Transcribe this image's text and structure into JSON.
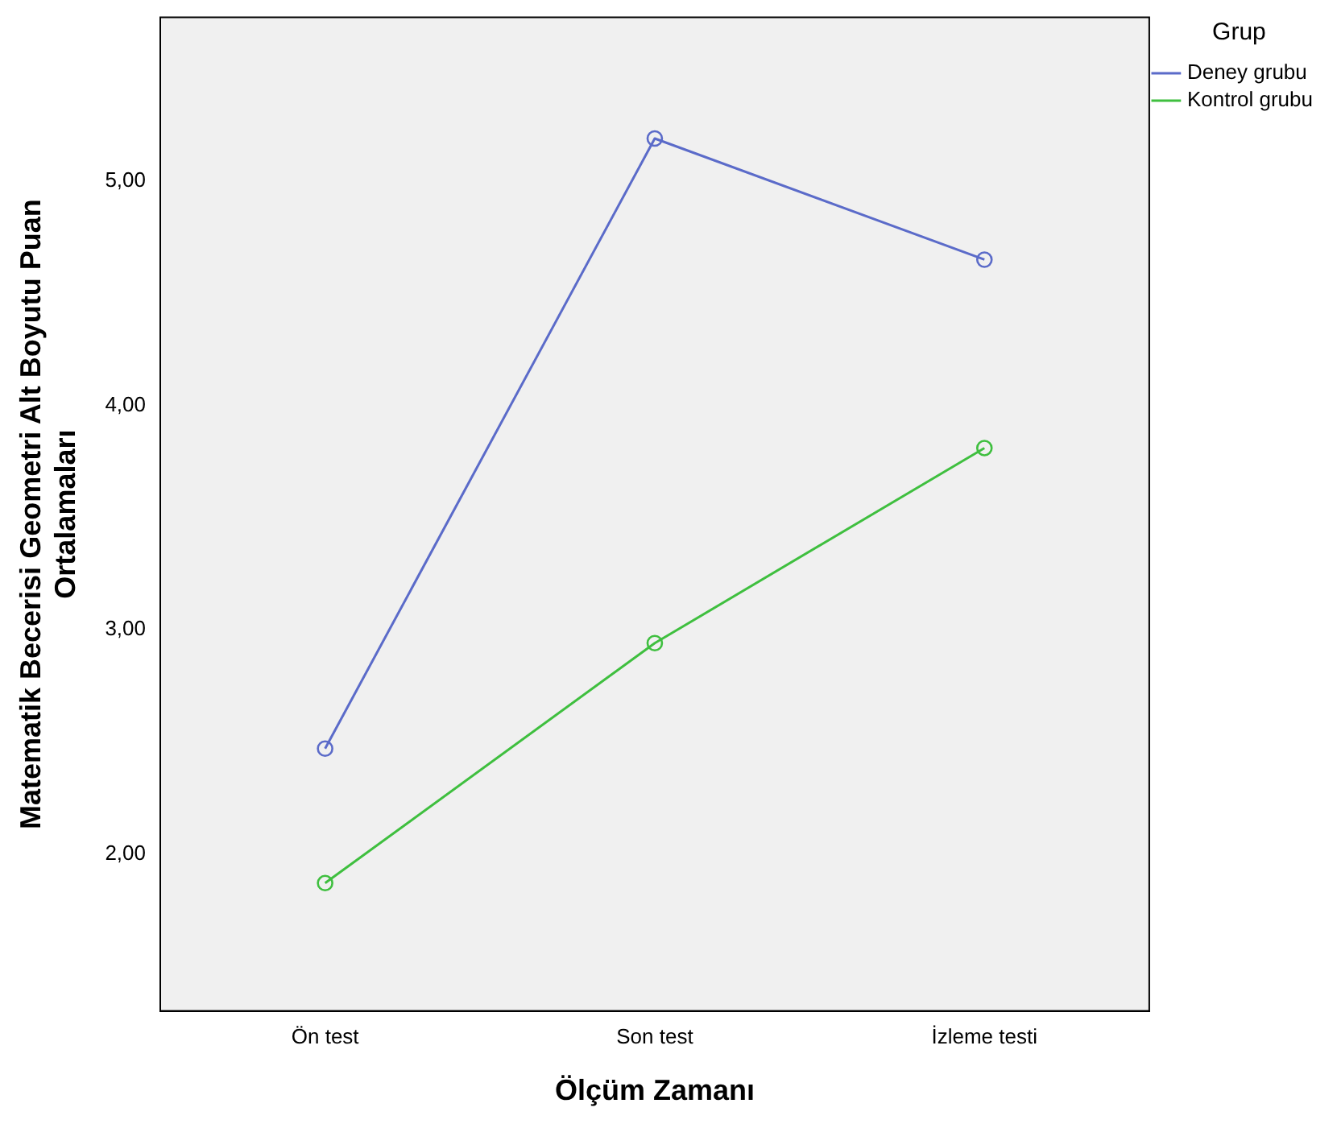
{
  "chart_data": {
    "type": "line",
    "xlabel": "Ölçüm Zamanı",
    "ylabel": "Matematik Becerisi Geometri Alt Boyutu Puan Ortalamaları",
    "legend_title": "Grup",
    "categories": [
      "Ön test",
      "Son test",
      "İzleme testi"
    ],
    "series": [
      {
        "name": "Deney grubu",
        "color": "#5b6bc9",
        "values": [
          2.47,
          5.19,
          4.65
        ]
      },
      {
        "name": "Kontrol grubu",
        "color": "#3fbf3f",
        "values": [
          1.87,
          2.94,
          3.81
        ]
      }
    ],
    "ylim": [
      1.3,
      5.73
    ],
    "yticks": [
      {
        "value": 2,
        "label": "2,00"
      },
      {
        "value": 3,
        "label": "3,00"
      },
      {
        "value": 4,
        "label": "4,00"
      },
      {
        "value": 5,
        "label": "5,00"
      }
    ],
    "grid": false,
    "legend": "top right",
    "marker": "circle",
    "line_style": "solid"
  }
}
